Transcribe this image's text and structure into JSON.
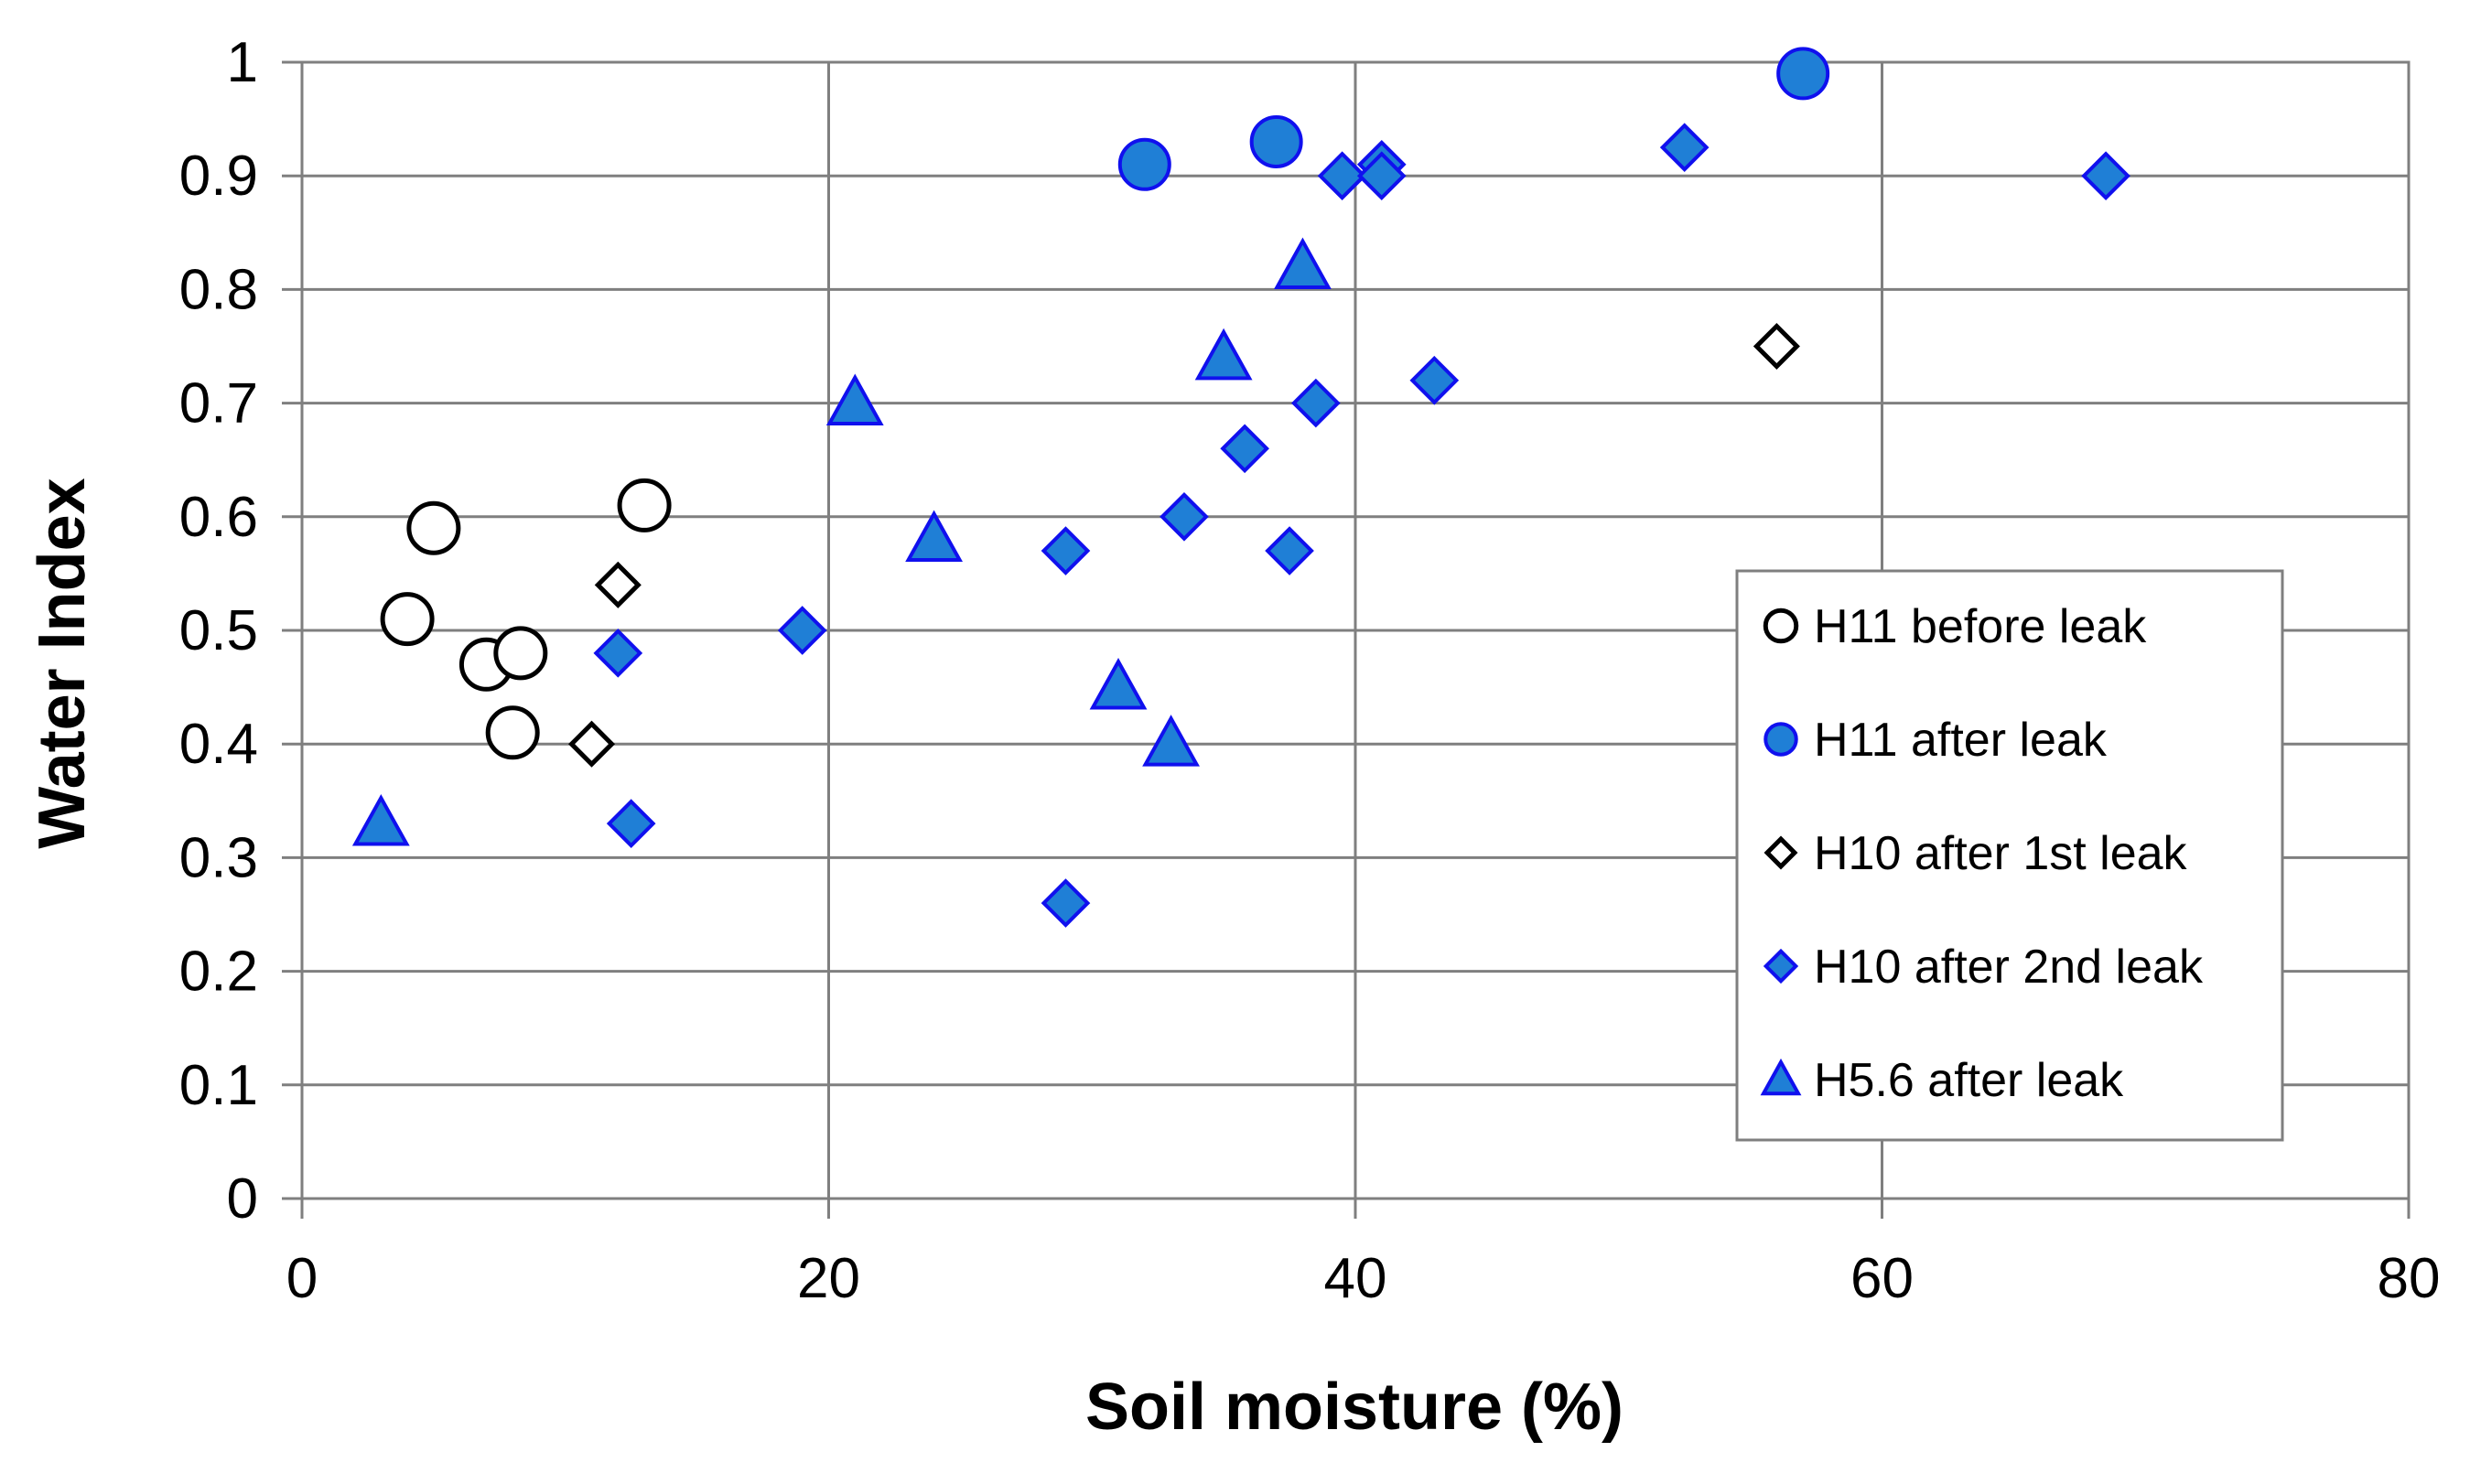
{
  "chart_data": {
    "type": "scatter",
    "title": "",
    "xlabel": "Soil moisture (%)",
    "ylabel": "Water Index",
    "xlim": [
      0,
      80
    ],
    "ylim": [
      0,
      1
    ],
    "x_ticks": [
      0,
      20,
      40,
      60,
      80
    ],
    "y_ticks": [
      0,
      0.1,
      0.2,
      0.3,
      0.4,
      0.5,
      0.6,
      0.7,
      0.8,
      0.9,
      1
    ],
    "x_tick_labels": [
      "0",
      "20",
      "40",
      "60",
      "80"
    ],
    "y_tick_labels": [
      "0",
      "0.1",
      "0.2",
      "0.3",
      "0.4",
      "0.5",
      "0.6",
      "0.7",
      "0.8",
      "0.9",
      "1"
    ],
    "grid": true,
    "legend_position": "right",
    "series": [
      {
        "name": "H11 before leak",
        "marker": "circle",
        "filled": false,
        "color": "#000000",
        "points": [
          [
            4,
            0.51
          ],
          [
            5,
            0.59
          ],
          [
            7,
            0.47
          ],
          [
            8.3,
            0.48
          ],
          [
            8,
            0.41
          ],
          [
            13,
            0.61
          ]
        ]
      },
      {
        "name": "H11 after leak",
        "marker": "circle",
        "filled": true,
        "color": "#1f7fd6",
        "stroke": "#1010ee",
        "points": [
          [
            32,
            0.91
          ],
          [
            37,
            0.93
          ],
          [
            57,
            0.99
          ]
        ]
      },
      {
        "name": "H10 after 1st leak",
        "marker": "diamond",
        "filled": false,
        "color": "#000000",
        "points": [
          [
            12,
            0.54
          ],
          [
            11,
            0.4
          ],
          [
            56,
            0.75
          ]
        ]
      },
      {
        "name": "H10 after 2nd leak",
        "marker": "diamond",
        "filled": true,
        "color": "#1f7fd6",
        "stroke": "#1010ee",
        "points": [
          [
            12,
            0.48
          ],
          [
            12.5,
            0.33
          ],
          [
            19,
            0.5
          ],
          [
            29,
            0.26
          ],
          [
            29,
            0.57
          ],
          [
            33.5,
            0.6
          ],
          [
            35.8,
            0.66
          ],
          [
            37.5,
            0.57
          ],
          [
            38.5,
            0.7
          ],
          [
            39.5,
            0.9
          ],
          [
            41,
            0.91
          ],
          [
            41,
            0.9
          ],
          [
            43,
            0.72
          ],
          [
            52.5,
            0.925
          ],
          [
            68.5,
            0.9
          ]
        ]
      },
      {
        "name": "H5.6 after leak",
        "marker": "triangle",
        "filled": true,
        "color": "#1f7fd6",
        "stroke": "#1010ee",
        "points": [
          [
            3,
            0.33
          ],
          [
            21,
            0.7
          ],
          [
            24,
            0.58
          ],
          [
            31,
            0.45
          ],
          [
            33,
            0.4
          ],
          [
            35,
            0.74
          ],
          [
            38,
            0.82
          ]
        ]
      }
    ]
  }
}
